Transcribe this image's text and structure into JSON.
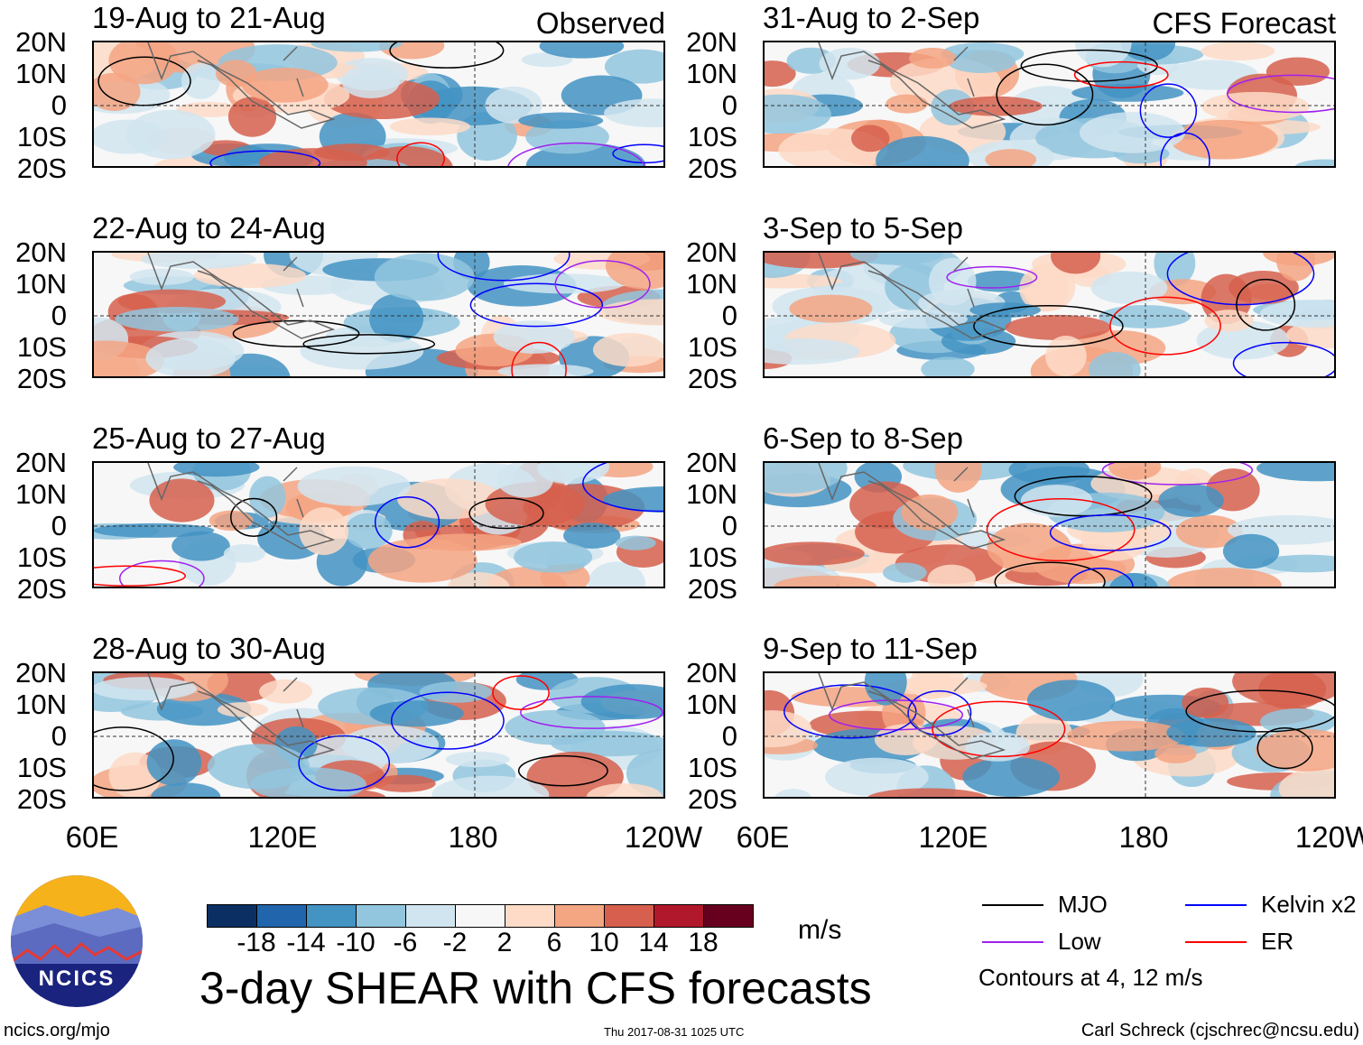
{
  "chart_data": {
    "type": "heatmap",
    "title": "3-day SHEAR with CFS forecasts",
    "units": "m/s",
    "lat_ticks": [
      "20N",
      "10N",
      "0",
      "10S",
      "20S"
    ],
    "lon_ticks": [
      "60E",
      "120E",
      "180",
      "120W"
    ],
    "lat_range": [
      -20,
      20
    ],
    "lon_range": [
      60,
      240
    ],
    "panels": [
      {
        "title": "19-Aug to 21-Aug",
        "label": "Observed"
      },
      {
        "title": "31-Aug to 2-Sep",
        "label": "CFS Forecast"
      },
      {
        "title": "22-Aug to 24-Aug",
        "label": ""
      },
      {
        "title": "3-Sep to 5-Sep",
        "label": ""
      },
      {
        "title": "25-Aug to 27-Aug",
        "label": ""
      },
      {
        "title": "6-Sep to 8-Sep",
        "label": ""
      },
      {
        "title": "28-Aug to 30-Aug",
        "label": ""
      },
      {
        "title": "9-Sep to 11-Sep",
        "label": ""
      }
    ],
    "colorbar": {
      "levels": [
        "-18",
        "-14",
        "-10",
        "-6",
        "-2",
        "2",
        "6",
        "10",
        "14",
        "18"
      ],
      "colors": [
        "#0b2f63",
        "#2166ac",
        "#4393c3",
        "#92c5de",
        "#d1e5f0",
        "#f7f7f7",
        "#fddbc7",
        "#f4a582",
        "#d6604d",
        "#b2182b",
        "#67001f"
      ]
    },
    "legend": [
      {
        "name": "MJO",
        "color": "#000000"
      },
      {
        "name": "Kelvin x2",
        "color": "#0000ff"
      },
      {
        "name": "Low",
        "color": "#a020f0"
      },
      {
        "name": "ER",
        "color": "#ff0000"
      }
    ],
    "contour_note": "Contours at 4, 12 m/s"
  },
  "footer": {
    "site": "ncics.org/mjo",
    "timestamp": "Thu 2017-08-31 1025 UTC",
    "author": "Carl Schreck (cjschrec@ncsu.edu)",
    "logo_text": "NCICS"
  }
}
